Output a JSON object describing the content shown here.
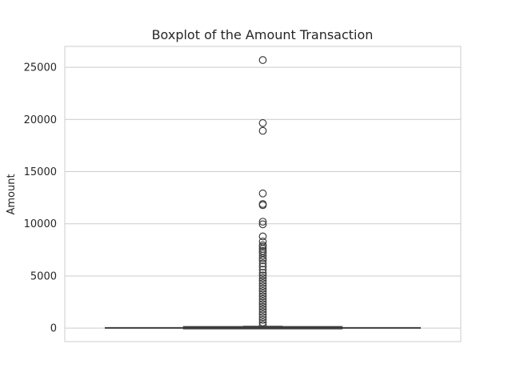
{
  "chart_data": {
    "type": "box",
    "title": "Boxplot of the Amount Transaction",
    "xlabel": "",
    "ylabel": "Amount",
    "ylim": [
      -1290,
      27000
    ],
    "yticks": [
      0,
      5000,
      10000,
      15000,
      20000,
      25000
    ],
    "grid": true,
    "box": {
      "q1": 5.6,
      "median": 22,
      "q3": 77.2,
      "whisker_low": 0,
      "whisker_high": 184.5,
      "color": "#3d3d3d"
    },
    "outliers_sample": [
      25691,
      19656,
      18910,
      12910,
      11898,
      11790,
      10200,
      9950,
      8790,
      8300,
      7950,
      7800,
      7600,
      7400,
      7200,
      6950,
      6700,
      6500,
      6200,
      5900,
      5600,
      5300,
      5050,
      4800,
      4550,
      4300,
      4050,
      3800,
      3550,
      3300,
      3050,
      2800,
      2550,
      2300,
      2050,
      1800,
      1550,
      1300,
      1050,
      800,
      550,
      300
    ],
    "colors": {
      "grid": "#cccccc",
      "box_edge": "#3d3d3d",
      "frame": "#cccccc"
    }
  }
}
